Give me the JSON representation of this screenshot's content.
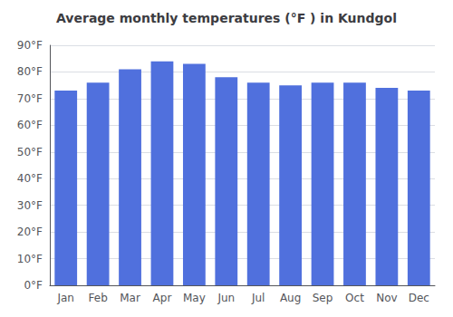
{
  "chart_data": {
    "type": "bar",
    "title": "Average monthly temperatures (°F ) in Kundgol",
    "categories": [
      "Jan",
      "Feb",
      "Mar",
      "Apr",
      "May",
      "Jun",
      "Jul",
      "Aug",
      "Sep",
      "Oct",
      "Nov",
      "Dec"
    ],
    "values": [
      73,
      76,
      81,
      84,
      83,
      78,
      76,
      75,
      76,
      76,
      74,
      73
    ],
    "ylim": [
      0,
      90
    ],
    "yticks": [
      {
        "value": 0,
        "label": "0°F"
      },
      {
        "value": 10,
        "label": "10°F"
      },
      {
        "value": 20,
        "label": "20°F"
      },
      {
        "value": 30,
        "label": "30°F"
      },
      {
        "value": 40,
        "label": "40°F"
      },
      {
        "value": 50,
        "label": "50°F"
      },
      {
        "value": 60,
        "label": "60°F"
      },
      {
        "value": 70,
        "label": "70°F"
      },
      {
        "value": 80,
        "label": "80°F"
      },
      {
        "value": 90,
        "label": "90°F"
      }
    ],
    "grid": true
  }
}
